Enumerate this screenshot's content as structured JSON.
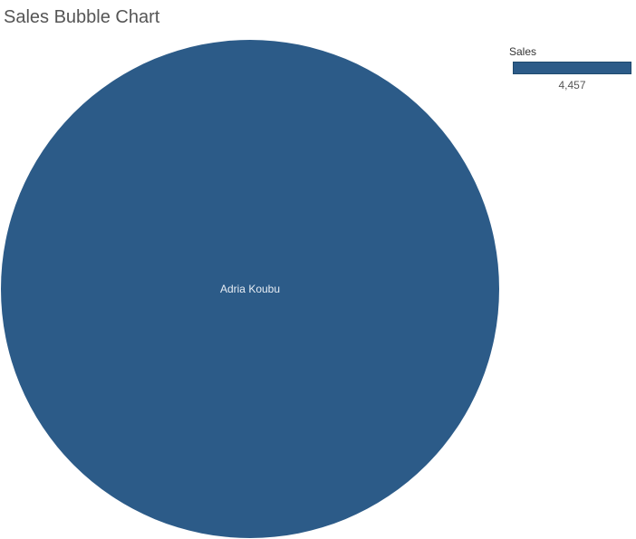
{
  "colors": {
    "bubble": "#2c5b88",
    "bubble_label": "#e8eef5"
  },
  "legend": {
    "title": "Sales",
    "value_label": "4,457"
  },
  "chart_data": {
    "type": "bubble",
    "title": "Sales Bubble Chart",
    "size_measure": "Sales",
    "bubbles": [
      {
        "label": "Adria Koubu",
        "value": 4457
      }
    ]
  }
}
